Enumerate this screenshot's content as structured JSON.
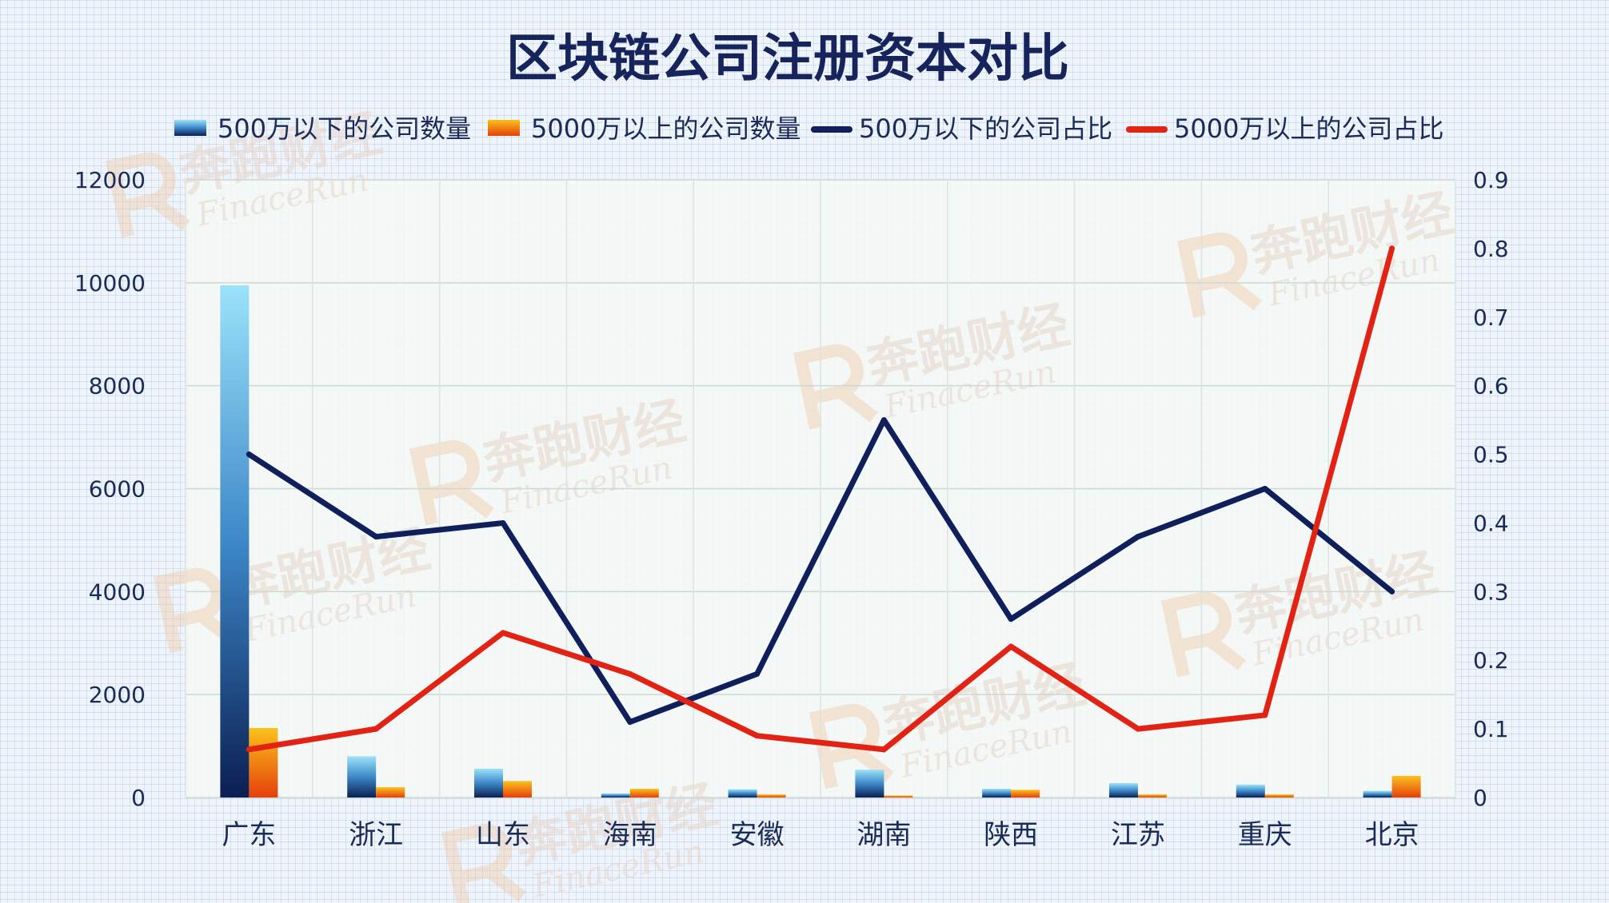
{
  "chart_data": {
    "type": "bar",
    "title": "区块链公司注册资本对比",
    "categories": [
      "广东",
      "浙江",
      "山东",
      "海南",
      "安徽",
      "湖南",
      "陕西",
      "江苏",
      "重庆",
      "北京"
    ],
    "series": [
      {
        "name": "500万以下的公司数量",
        "kind": "bar",
        "axis": "left",
        "values": [
          9950,
          800,
          560,
          80,
          160,
          540,
          170,
          280,
          250,
          130
        ]
      },
      {
        "name": "5000万以上的公司数量",
        "kind": "bar",
        "axis": "left",
        "values": [
          1350,
          200,
          320,
          170,
          60,
          40,
          150,
          60,
          60,
          420
        ]
      },
      {
        "name": "500万以下的公司占比",
        "kind": "line",
        "axis": "right",
        "values": [
          0.5,
          0.38,
          0.4,
          0.11,
          0.18,
          0.55,
          0.26,
          0.38,
          0.45,
          0.3
        ]
      },
      {
        "name": "5000万以上的公司占比",
        "kind": "line",
        "axis": "right",
        "values": [
          0.07,
          0.1,
          0.24,
          0.18,
          0.09,
          0.07,
          0.22,
          0.1,
          0.12,
          0.8
        ]
      }
    ],
    "y_left": {
      "min": 0,
      "max": 12000,
      "ticks": [
        "0",
        "2000",
        "4000",
        "6000",
        "8000",
        "10000",
        "12000"
      ]
    },
    "y_right": {
      "min": 0,
      "max": 0.9,
      "ticks": [
        "0",
        "0.1",
        "0.2",
        "0.3",
        "0.4",
        "0.5",
        "0.6",
        "0.7",
        "0.8",
        "0.9"
      ]
    },
    "grid": true,
    "legend_position": "top",
    "colors": {
      "bar1_top": "#9be3fa",
      "bar1_bottom": "#0b1f52",
      "bar2_top": "#fbc21b",
      "bar2_bottom": "#e4400c",
      "line1": "#0f1f5c",
      "line2": "#e22314"
    }
  },
  "watermark": {
    "cn": "奔跑财经",
    "en": "FinaceRun"
  }
}
